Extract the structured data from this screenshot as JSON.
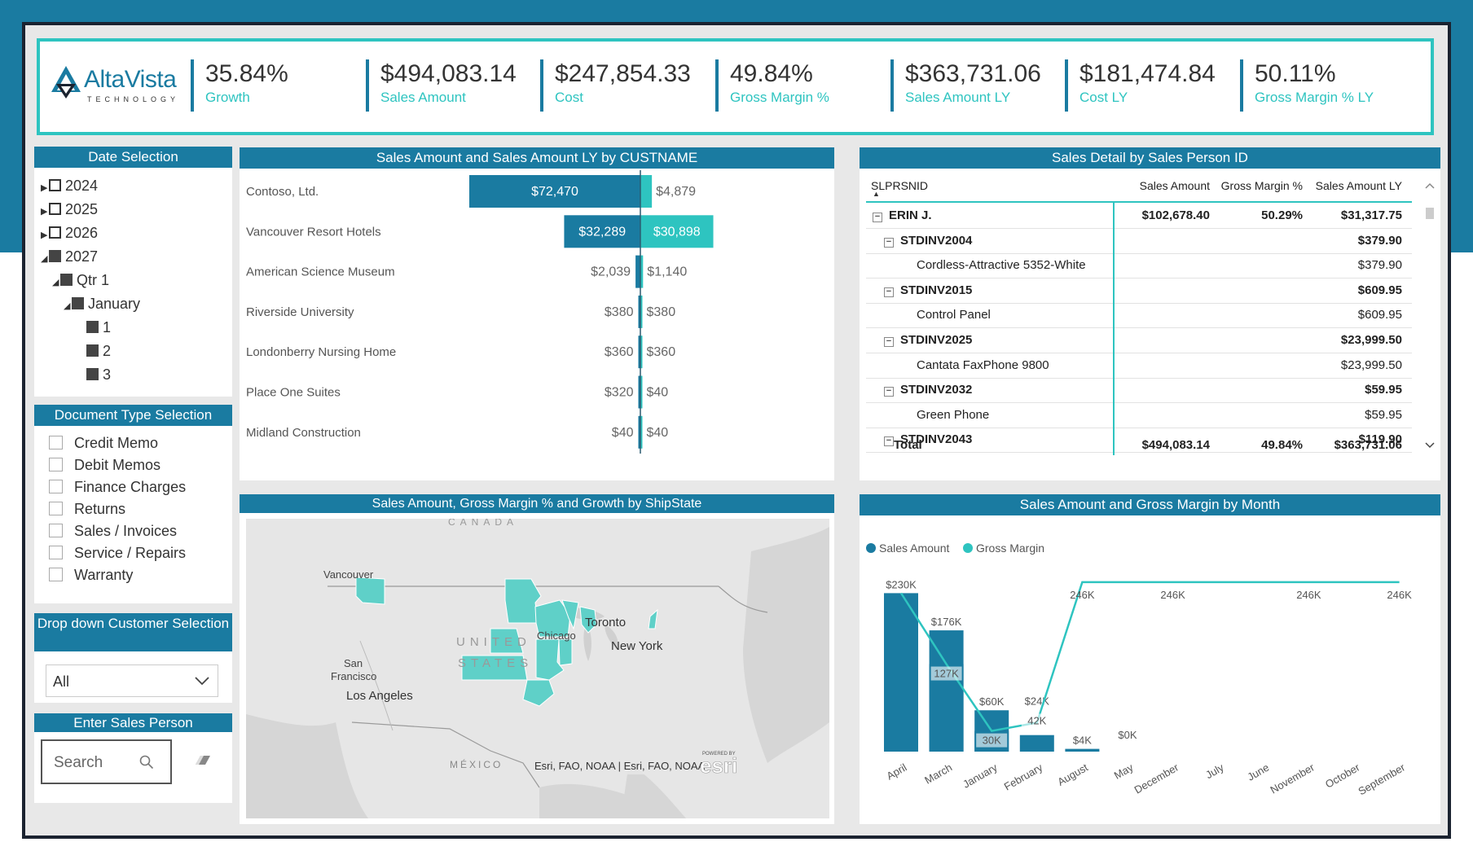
{
  "brand": {
    "name": "AltaVista",
    "sub": "TECHNOLOGY"
  },
  "colors": {
    "primary": "#1a7ba1",
    "accent": "#2ec4c0",
    "band": "#1a7ba1"
  },
  "kpis": [
    {
      "value": "35.84%",
      "label": "Growth"
    },
    {
      "value": "$494,083.14",
      "label": "Sales Amount"
    },
    {
      "value": "$247,854.33",
      "label": "Cost"
    },
    {
      "value": "49.84%",
      "label": "Gross Margin %"
    },
    {
      "value": "$363,731.06",
      "label": "Sales Amount LY"
    },
    {
      "value": "$181,474.84",
      "label": "Cost LY"
    },
    {
      "value": "50.11%",
      "label": "Gross Margin % LY"
    }
  ],
  "date_selection": {
    "title": "Date Selection",
    "years": [
      "2024",
      "2025",
      "2026",
      "2027"
    ],
    "quarter": "Qtr 1",
    "month": "January",
    "days": [
      "1",
      "2",
      "3"
    ]
  },
  "doc_type": {
    "title": "Document Type Selection",
    "options": [
      "Credit Memo",
      "Debit Memos",
      "Finance Charges",
      "Returns",
      "Sales / Invoices",
      "Service / Repairs",
      "Warranty"
    ]
  },
  "customer_dropdown": {
    "title": "Drop down Customer Selection",
    "value": "All"
  },
  "sales_person": {
    "title": "Enter Sales Person",
    "placeholder": "Search"
  },
  "custname_chart": {
    "title": "Sales Amount and Sales Amount LY by CUSTNAME",
    "rows": [
      {
        "name": "Contoso, Ltd.",
        "sales": "$72,470",
        "ly": "$4,879"
      },
      {
        "name": "Vancouver Resort Hotels",
        "sales": "$32,289",
        "ly": "$30,898"
      },
      {
        "name": "American Science Museum",
        "sales": "$2,039",
        "ly": "$1,140"
      },
      {
        "name": "Riverside University",
        "sales": "$380",
        "ly": "$380"
      },
      {
        "name": "Londonberry Nursing Home",
        "sales": "$360",
        "ly": "$360"
      },
      {
        "name": "Place One Suites",
        "sales": "$320",
        "ly": "$40"
      },
      {
        "name": "Midland Construction",
        "sales": "$40",
        "ly": "$40"
      }
    ]
  },
  "sales_detail": {
    "title": "Sales Detail by Sales Person ID",
    "headers": [
      "SLPRSNID",
      "Sales Amount",
      "Gross Margin %",
      "Sales Amount LY"
    ],
    "rows": [
      {
        "label": "ERIN J.",
        "sales": "$102,678.40",
        "gm": "50.29%",
        "ly": "$31,317.75",
        "level": 0
      },
      {
        "label": "STDINV2004",
        "sales": "",
        "gm": "",
        "ly": "$379.90",
        "level": 1
      },
      {
        "label": "Cordless-Attractive 5352-White",
        "sales": "",
        "gm": "",
        "ly": "$379.90",
        "level": 2
      },
      {
        "label": "STDINV2015",
        "sales": "",
        "gm": "",
        "ly": "$609.95",
        "level": 1
      },
      {
        "label": "Control Panel",
        "sales": "",
        "gm": "",
        "ly": "$609.95",
        "level": 2
      },
      {
        "label": "STDINV2025",
        "sales": "",
        "gm": "",
        "ly": "$23,999.50",
        "level": 1
      },
      {
        "label": "Cantata FaxPhone 9800",
        "sales": "",
        "gm": "",
        "ly": "$23,999.50",
        "level": 2
      },
      {
        "label": "STDINV2032",
        "sales": "",
        "gm": "",
        "ly": "$59.95",
        "level": 1
      },
      {
        "label": "Green Phone",
        "sales": "",
        "gm": "",
        "ly": "$59.95",
        "level": 2
      },
      {
        "label": "STDINV2043",
        "sales": "",
        "gm": "",
        "ly": "$119.90",
        "level": 1
      }
    ],
    "total": {
      "label": "Total",
      "sales": "$494,083.14",
      "gm": "49.84%",
      "ly": "$363,731.06"
    }
  },
  "map": {
    "title": "Sales Amount, Gross Margin % and Growth by ShipState",
    "labels": {
      "canada": "CANADA",
      "vancouver": "Vancouver",
      "us1": "UNITED",
      "us2": "STATES",
      "chicago": "Chicago",
      "toronto": "Toronto",
      "newyork": "New York",
      "sf1": "San",
      "sf2": "Francisco",
      "la": "Los Angeles",
      "mexico": "MÉXICO",
      "attribution": "Esri, FAO, NOAA | Esri, FAO, NOAA",
      "poweredby": "POWERED BY",
      "esri": "esri"
    }
  },
  "chart_data": {
    "type": "bar",
    "title": "Sales Amount and Gross Margin by Month",
    "categories": [
      "April",
      "March",
      "January",
      "February",
      "August",
      "May",
      "December",
      "July",
      "June",
      "November",
      "October",
      "September"
    ],
    "series": [
      {
        "name": "Sales Amount",
        "values": [
          230,
          176,
          60,
          24,
          4,
          0,
          0,
          0,
          0,
          0,
          0,
          0
        ],
        "labels": [
          "$230K",
          "$176K",
          "$60K",
          "$24K",
          "$4K",
          "$0K",
          "",
          "",
          "",
          "",
          "",
          ""
        ]
      },
      {
        "name": "Gross Margin",
        "values": [
          230,
          127,
          30,
          42,
          246,
          246,
          246,
          246,
          246,
          246,
          246,
          246
        ],
        "labels": [
          "",
          "127K",
          "30K",
          "42K",
          "246K",
          "",
          "246K",
          "",
          "",
          "246K",
          "",
          "246K"
        ]
      }
    ],
    "ylim": [
      0,
      260
    ]
  }
}
